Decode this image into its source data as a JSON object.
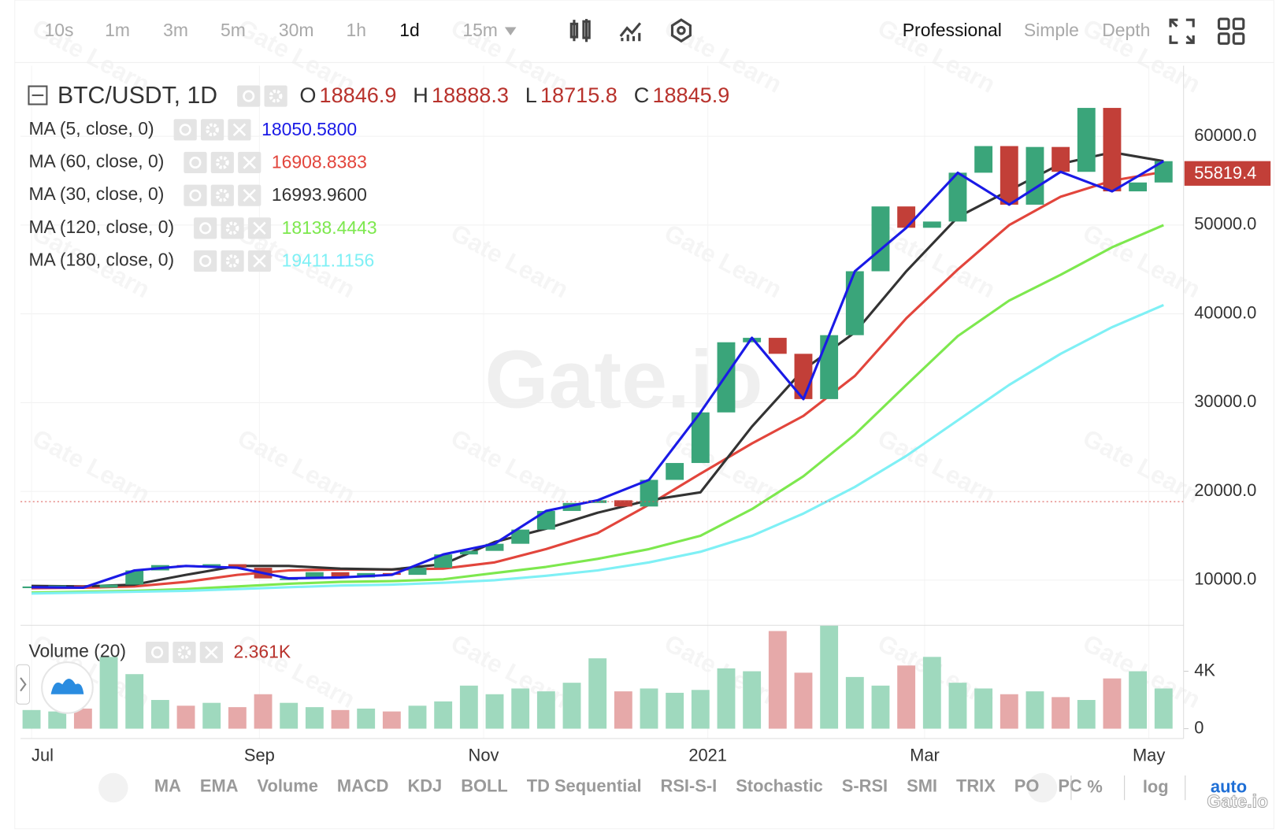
{
  "toolbar": {
    "intervals": [
      {
        "label": "10s",
        "active": false
      },
      {
        "label": "1m",
        "active": false
      },
      {
        "label": "3m",
        "active": false
      },
      {
        "label": "5m",
        "active": false
      },
      {
        "label": "30m",
        "active": false
      },
      {
        "label": "1h",
        "active": false
      },
      {
        "label": "1d",
        "active": true
      },
      {
        "label": "15m",
        "active": false
      }
    ],
    "modes": [
      {
        "label": "Professional",
        "active": true
      },
      {
        "label": "Simple",
        "active": false
      },
      {
        "label": "Depth",
        "active": false
      }
    ]
  },
  "watermark": "Gate Learn",
  "brand": "Gate.io",
  "chart_data": {
    "type": "candlestick",
    "symbol_label": "BTC/USDT, 1D",
    "ohlc": [
      {
        "label": "O",
        "value": 18846.9
      },
      {
        "label": "H",
        "value": 18888.3
      },
      {
        "label": "L",
        "value": 18715.8
      },
      {
        "label": "C",
        "value": 18845.9
      }
    ],
    "x": [
      0,
      7,
      14,
      21,
      28,
      35,
      42,
      49,
      56,
      63,
      70,
      77,
      84,
      91,
      98,
      105,
      112,
      119,
      126,
      133,
      140,
      147,
      154,
      161,
      168,
      175,
      182,
      189,
      196,
      203,
      210,
      217,
      224,
      231,
      238,
      245,
      252,
      259,
      266,
      273,
      280,
      287,
      294,
      301,
      308
    ],
    "close": [
      9200,
      9400,
      9150,
      9500,
      11100,
      11700,
      11600,
      11800,
      11400,
      10200,
      10200,
      10900,
      10300,
      10800,
      10600,
      11400,
      12900,
      13300,
      14100,
      15700,
      17800,
      18700,
      19000,
      18300,
      21300,
      23200,
      28900,
      36800,
      37300,
      35500,
      30400,
      37600,
      44800,
      52100,
      49700,
      50400,
      55900,
      58900,
      52300,
      58800,
      56000,
      63200,
      53800,
      54800,
      57200
    ],
    "up_color": "#3aa57a",
    "down_color": "#c23f38",
    "xlim": [
      -3,
      313
    ],
    "xticks": [
      {
        "value": 0,
        "label": "Jul"
      },
      {
        "value": 62,
        "label": "Sep"
      },
      {
        "value": 123,
        "label": "Nov"
      },
      {
        "value": 184,
        "label": "2021"
      },
      {
        "value": 243,
        "label": "Mar"
      },
      {
        "value": 304,
        "label": "May"
      }
    ],
    "ylim": [
      5100,
      67950
    ],
    "yticks": [
      {
        "value": 10000,
        "label": "10000.0"
      },
      {
        "value": 20000,
        "label": "20000.0"
      },
      {
        "value": 30000,
        "label": "30000.0"
      },
      {
        "value": 40000,
        "label": "40000.0"
      },
      {
        "value": 50000,
        "label": "50000.0"
      },
      {
        "value": 60000,
        "label": "60000.0"
      }
    ],
    "grid": true,
    "last_price": {
      "value": 55819.4,
      "color": "#c23f38"
    },
    "ma": {
      "x": [
        0,
        14,
        28,
        42,
        56,
        70,
        84,
        98,
        112,
        126,
        140,
        154,
        168,
        182,
        196,
        210,
        224,
        238,
        252,
        266,
        280,
        294,
        308
      ],
      "series": [
        {
          "name": "MA (5, close, 0)",
          "color": "#1a1ae6",
          "legend_value": "18050.5800",
          "values": [
            9200,
            9150,
            11100,
            11600,
            11400,
            10200,
            10300,
            10600,
            12900,
            14100,
            17800,
            19000,
            21300,
            28900,
            37300,
            30400,
            44800,
            49700,
            55900,
            52300,
            56000,
            53800,
            57200
          ]
        },
        {
          "name": "MA (60, close, 0)",
          "color": "#e2453c",
          "legend_value": "16908.8383",
          "values": [
            9100,
            9150,
            9300,
            9800,
            10600,
            11100,
            11200,
            11200,
            11300,
            12000,
            13500,
            15300,
            18500,
            22000,
            25400,
            28500,
            33000,
            39500,
            45000,
            50000,
            53200,
            55000,
            56000
          ]
        },
        {
          "name": "MA (30, close, 0)",
          "color": "#333333",
          "legend_value": "16993.9600",
          "values": [
            9350,
            9300,
            9500,
            10600,
            11600,
            11600,
            11300,
            11200,
            11800,
            14300,
            15800,
            17600,
            19000,
            19900,
            27300,
            33700,
            37900,
            44800,
            50900,
            53900,
            56900,
            58200,
            57200
          ]
        },
        {
          "name": "MA (120, close, 0)",
          "color": "#7de84e",
          "legend_value": "18138.4443",
          "values": [
            8600,
            8700,
            8800,
            9000,
            9300,
            9600,
            9800,
            9900,
            10100,
            10800,
            11500,
            12400,
            13500,
            15000,
            18000,
            21700,
            26400,
            32000,
            37500,
            41500,
            44400,
            47500,
            50000
          ]
        },
        {
          "name": "MA (180, close, 0)",
          "color": "#7ff0f5",
          "legend_value": "19411.1156",
          "values": [
            8500,
            8600,
            8700,
            8800,
            9000,
            9200,
            9400,
            9500,
            9700,
            10000,
            10500,
            11100,
            12000,
            13200,
            15000,
            17500,
            20500,
            24000,
            28000,
            32000,
            35500,
            38500,
            41000
          ]
        }
      ]
    },
    "volume": {
      "name": "Volume (20)",
      "legend_value": "2.361K",
      "up_color": "#9fd9be",
      "down_color": "#e6a9a9",
      "values": [
        1300,
        1200,
        1400,
        5000,
        3800,
        2000,
        1600,
        1800,
        1500,
        2400,
        1800,
        1500,
        1300,
        1400,
        1200,
        1600,
        1900,
        3000,
        2400,
        2800,
        2600,
        3200,
        4900,
        2600,
        2800,
        2500,
        2700,
        4200,
        4000,
        6800,
        3900,
        7200,
        3600,
        3000,
        4400,
        5000,
        3200,
        2800,
        2400,
        2600,
        2200,
        2000,
        3500,
        4000,
        2800
      ],
      "ylim": [
        0,
        7200
      ],
      "yticks": [
        0,
        {
          "value": 4000,
          "label": "4K"
        }
      ]
    }
  },
  "indicator_bar": {
    "indicators": [
      "MA",
      "EMA",
      "Volume",
      "MACD",
      "KDJ",
      "BOLL",
      "TD Sequential",
      "RSI-S-I",
      "Stochastic",
      "S-RSI",
      "SMI",
      "TRIX",
      "PO",
      "PC"
    ],
    "toggles": [
      {
        "label": "%",
        "active": false
      },
      {
        "label": "log",
        "active": false
      },
      {
        "label": "auto",
        "active": true
      }
    ]
  }
}
